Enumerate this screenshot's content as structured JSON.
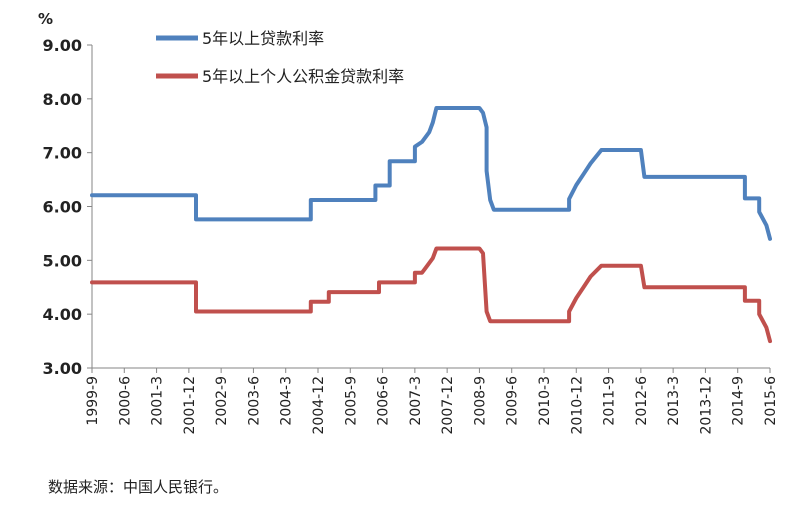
{
  "chart_data": {
    "type": "line",
    "ylabel": "%",
    "ylim": [
      3.0,
      9.0
    ],
    "y_ticks": [
      "3.00",
      "4.00",
      "5.00",
      "6.00",
      "7.00",
      "8.00",
      "9.00"
    ],
    "x_ticks": [
      "1999-9",
      "2000-6",
      "2001-3",
      "2001-12",
      "2002-9",
      "2003-6",
      "2004-3",
      "2004-12",
      "2005-9",
      "2006-6",
      "2007-3",
      "2007-12",
      "2008-9",
      "2009-6",
      "2010-3",
      "2010-12",
      "2011-9",
      "2012-6",
      "2013-3",
      "2013-12",
      "2014-9",
      "2015-6"
    ],
    "x_range": [
      "1999-9",
      "2015-6"
    ],
    "legend_position": "top-left",
    "grid": false,
    "series": [
      {
        "name": "5年以上贷款利率",
        "color": "#4F81BD",
        "points": [
          [
            "1999-9",
            6.21
          ],
          [
            "2002-2",
            6.21
          ],
          [
            "2002-2",
            5.76
          ],
          [
            "2004-10",
            5.76
          ],
          [
            "2004-10",
            6.12
          ],
          [
            "2006-4",
            6.12
          ],
          [
            "2006-4",
            6.39
          ],
          [
            "2006-8",
            6.39
          ],
          [
            "2006-8",
            6.84
          ],
          [
            "2007-3",
            6.84
          ],
          [
            "2007-3",
            7.11
          ],
          [
            "2007-5",
            7.2
          ],
          [
            "2007-7",
            7.38
          ],
          [
            "2007-8",
            7.56
          ],
          [
            "2007-9",
            7.83
          ],
          [
            "2008-9",
            7.83
          ],
          [
            "2008-10",
            7.74
          ],
          [
            "2008-11",
            7.47
          ],
          [
            "2008-11",
            6.66
          ],
          [
            "2008-12",
            6.12
          ],
          [
            "2009-1",
            5.94
          ],
          [
            "2010-10",
            5.94
          ],
          [
            "2010-10",
            6.14
          ],
          [
            "2010-12",
            6.4
          ],
          [
            "2011-2",
            6.6
          ],
          [
            "2011-4",
            6.8
          ],
          [
            "2011-7",
            7.05
          ],
          [
            "2012-6",
            7.05
          ],
          [
            "2012-7",
            6.55
          ],
          [
            "2014-11",
            6.55
          ],
          [
            "2014-11",
            6.15
          ],
          [
            "2015-3",
            6.15
          ],
          [
            "2015-3",
            5.9
          ],
          [
            "2015-5",
            5.65
          ],
          [
            "2015-6",
            5.4
          ]
        ]
      },
      {
        "name": "5年以上个人公积金贷款利率",
        "color": "#C0504D",
        "points": [
          [
            "1999-9",
            4.59
          ],
          [
            "2002-2",
            4.59
          ],
          [
            "2002-2",
            4.05
          ],
          [
            "2004-10",
            4.05
          ],
          [
            "2004-10",
            4.23
          ],
          [
            "2005-3",
            4.23
          ],
          [
            "2005-3",
            4.41
          ],
          [
            "2006-5",
            4.41
          ],
          [
            "2006-5",
            4.59
          ],
          [
            "2007-3",
            4.59
          ],
          [
            "2007-3",
            4.77
          ],
          [
            "2007-5",
            4.77
          ],
          [
            "2007-6",
            4.86
          ],
          [
            "2007-8",
            5.04
          ],
          [
            "2007-9",
            5.22
          ],
          [
            "2008-9",
            5.22
          ],
          [
            "2008-10",
            5.13
          ],
          [
            "2008-11",
            4.05
          ],
          [
            "2008-12",
            3.87
          ],
          [
            "2010-10",
            3.87
          ],
          [
            "2010-10",
            4.05
          ],
          [
            "2010-12",
            4.3
          ],
          [
            "2011-2",
            4.5
          ],
          [
            "2011-4",
            4.7
          ],
          [
            "2011-7",
            4.9
          ],
          [
            "2012-6",
            4.9
          ],
          [
            "2012-7",
            4.5
          ],
          [
            "2014-11",
            4.5
          ],
          [
            "2014-11",
            4.25
          ],
          [
            "2015-3",
            4.25
          ],
          [
            "2015-3",
            4.0
          ],
          [
            "2015-5",
            3.75
          ],
          [
            "2015-6",
            3.5
          ]
        ]
      }
    ]
  },
  "footer": {
    "source": "数据来源：中国人民银行。"
  }
}
